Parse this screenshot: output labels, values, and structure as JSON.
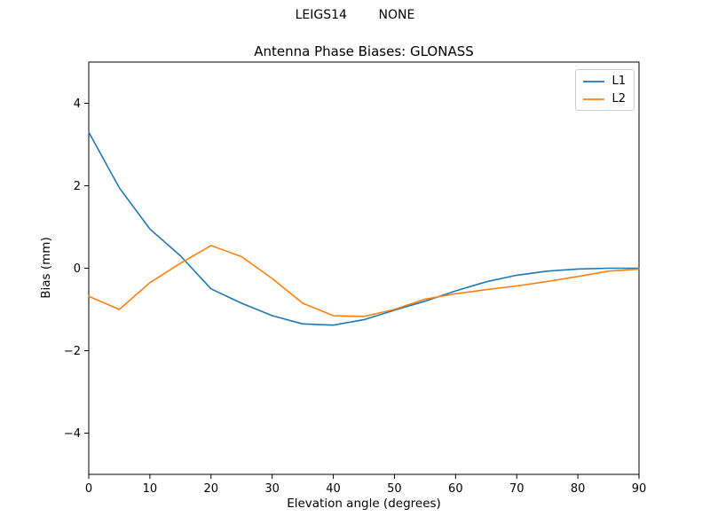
{
  "header": {
    "suptitle": "LEIGS14        NONE"
  },
  "chart_data": {
    "type": "line",
    "suptitle": "LEIGS14        NONE",
    "title": "Antenna Phase Biases: GLONASS",
    "xlabel": "Elevation angle (degrees)",
    "ylabel": "Bias (mm)",
    "xlim": [
      0,
      90
    ],
    "ylim": [
      -5,
      5
    ],
    "xticks": [
      0,
      10,
      20,
      30,
      40,
      50,
      60,
      70,
      80,
      90
    ],
    "yticks": [
      -4,
      -2,
      0,
      2,
      4
    ],
    "grid": false,
    "legend_position": "upper right",
    "x": [
      0,
      5,
      10,
      15,
      20,
      25,
      30,
      35,
      40,
      45,
      50,
      55,
      60,
      65,
      70,
      75,
      80,
      85,
      90
    ],
    "series": [
      {
        "name": "L1",
        "color": "#1f77b4",
        "values": [
          3.3,
          1.95,
          0.95,
          0.3,
          -0.5,
          -0.85,
          -1.15,
          -1.35,
          -1.38,
          -1.25,
          -1.02,
          -0.8,
          -0.55,
          -0.33,
          -0.17,
          -0.07,
          -0.02,
          0.0,
          0.0
        ]
      },
      {
        "name": "L2",
        "color": "#ff7f0e",
        "values": [
          -0.68,
          -1.0,
          -0.35,
          0.12,
          0.55,
          0.28,
          -0.25,
          -0.85,
          -1.15,
          -1.17,
          -1.0,
          -0.75,
          -0.62,
          -0.52,
          -0.43,
          -0.32,
          -0.2,
          -0.07,
          -0.02
        ]
      }
    ]
  }
}
